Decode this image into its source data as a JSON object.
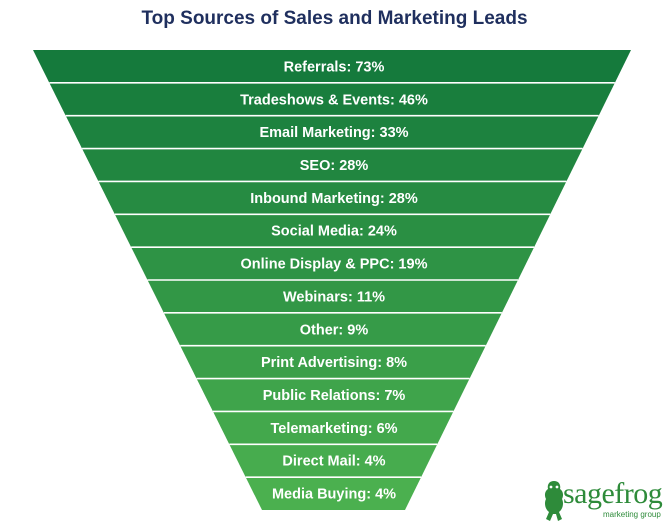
{
  "chart_data": {
    "type": "funnel",
    "title": "Top Sources of Sales and Marketing Leads",
    "categories": [
      "Referrals",
      "Tradeshows & Events",
      "Email Marketing",
      "SEO",
      "Inbound Marketing",
      "Social Media",
      "Online Display & PPC",
      "Webinars",
      "Other",
      "Print Advertising",
      "Public Relations",
      "Telemarketing",
      "Direct Mail",
      "Media Buying"
    ],
    "values": [
      73,
      46,
      33,
      28,
      28,
      24,
      19,
      11,
      9,
      8,
      7,
      6,
      4,
      4
    ],
    "value_suffix": "%",
    "colors": {
      "top": "#157a3c",
      "bottom": "#4bb04f",
      "divider": "#ffffff",
      "label": "#ffffff"
    }
  },
  "logo": {
    "wordmark": "sagefrog",
    "tagline": "marketing group",
    "icon": "frog-icon",
    "color": "#2e8b3a"
  }
}
